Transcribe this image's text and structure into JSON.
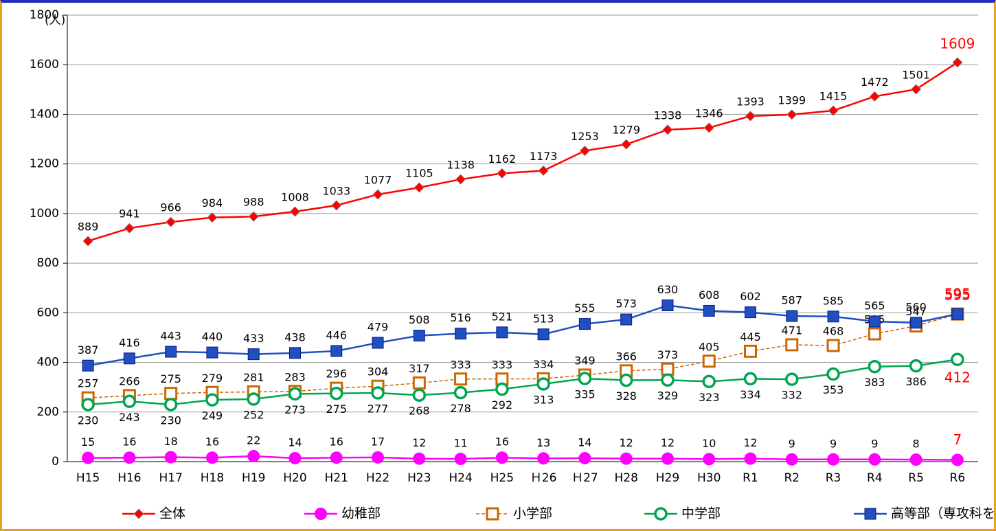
{
  "chart_data": {
    "type": "line",
    "y_label": "(人)",
    "categories": [
      "H15",
      "H16",
      "H17",
      "H18",
      "H19",
      "H20",
      "H21",
      "H22",
      "H23",
      "H24",
      "H25",
      "Ｈ26",
      "Ｈ27",
      "H28",
      "H29",
      "H30",
      "R1",
      "R2",
      "R3",
      "R4",
      "R5",
      "R6"
    ],
    "series": [
      {
        "name": "全体",
        "color": "#ff0000",
        "marker": "diamond",
        "values": [
          889,
          941,
          966,
          984,
          988,
          1008,
          1033,
          1077,
          1105,
          1138,
          1162,
          1173,
          1253,
          1279,
          1338,
          1346,
          1393,
          1399,
          1415,
          1472,
          1501,
          1609
        ]
      },
      {
        "name": "幼稚部",
        "color": "#ff00ff",
        "marker": "circle-filled",
        "values": [
          15,
          16,
          18,
          16,
          22,
          14,
          16,
          17,
          12,
          11,
          16,
          13,
          14,
          12,
          12,
          10,
          12,
          9,
          9,
          9,
          8,
          7
        ]
      },
      {
        "name": "小学部",
        "color": "#cc6600",
        "marker": "square-open",
        "dashed": true,
        "values": [
          257,
          266,
          275,
          279,
          281,
          283,
          296,
          304,
          317,
          333,
          333,
          334,
          349,
          366,
          373,
          405,
          445,
          471,
          468,
          515,
          547,
          595
        ]
      },
      {
        "name": "中学部",
        "color": "#00a550",
        "marker": "circle-open",
        "values": [
          230,
          243,
          230,
          249,
          252,
          273,
          275,
          277,
          268,
          278,
          292,
          313,
          335,
          328,
          329,
          323,
          334,
          332,
          353,
          383,
          386,
          412
        ]
      },
      {
        "name": "高等部（専攻科を含む）",
        "color": "#1f4fc0",
        "marker": "square-filled",
        "values": [
          387,
          416,
          443,
          440,
          433,
          438,
          446,
          479,
          508,
          516,
          521,
          513,
          555,
          573,
          630,
          608,
          602,
          587,
          585,
          565,
          560,
          595
        ]
      }
    ],
    "ylim": [
      0,
      1800
    ],
    "yticks": [
      0,
      200,
      400,
      600,
      800,
      1000,
      1200,
      1400,
      1600,
      1800
    ],
    "grid": true,
    "legend": "bottom"
  }
}
